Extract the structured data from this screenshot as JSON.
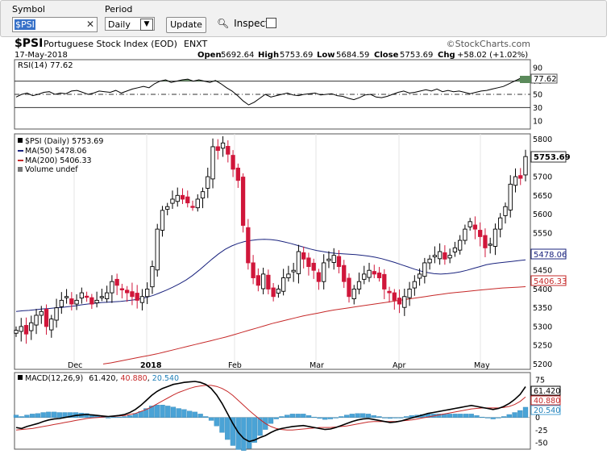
{
  "toolbar": {
    "symbol_label": "Symbol",
    "symbol_value": "$PSI",
    "period_label": "Period",
    "period_value": "Daily",
    "update_label": "Update",
    "inspect_label": "Inspect"
  },
  "header": {
    "ticker": "$PSI",
    "name": "Portuguese Stock Index (EOD)",
    "exchange": "ENXT",
    "watermark": "©StockCharts.com",
    "date": "17-May-2018",
    "open_label": "Open",
    "open": "5692.64",
    "high_label": "High",
    "high": "5753.69",
    "low_label": "Low",
    "low": "5684.59",
    "close_label": "Close",
    "close": "5753.69",
    "chg_label": "Chg",
    "chg": "+58.02 (+1.02%)"
  },
  "colors": {
    "up": "#000000",
    "down": "#d0163a",
    "ma50": "#1a237e",
    "ma200": "#c62828",
    "macd_hist": "#4aa3d6",
    "rsi_fill": "#5b8a5b"
  },
  "chart_data": [
    {
      "type": "line",
      "panel": "RSI",
      "title": "RSI(14) 77.62",
      "yticks": [
        90,
        70,
        50,
        30,
        10
      ],
      "ylim": [
        0,
        100
      ],
      "last_label": "77.62",
      "values": [
        46,
        50,
        52,
        48,
        50,
        53,
        54,
        50,
        52,
        51,
        55,
        56,
        53,
        50,
        52,
        55,
        54,
        53,
        56,
        52,
        55,
        58,
        60,
        62,
        60,
        66,
        70,
        72,
        68,
        70,
        72,
        73,
        70,
        72,
        70,
        68,
        71,
        66,
        60,
        55,
        48,
        40,
        34,
        38,
        44,
        50,
        46,
        48,
        50,
        52,
        49,
        48,
        50,
        51,
        52,
        49,
        50,
        51,
        48,
        47,
        44,
        42,
        45,
        49,
        50,
        46,
        45,
        47,
        50,
        53,
        55,
        52,
        53,
        55,
        57,
        55,
        58,
        54,
        56,
        54,
        55,
        53,
        51,
        53,
        55,
        56,
        58,
        60,
        62,
        66,
        70,
        74,
        77.62
      ]
    },
    {
      "type": "candlestick",
      "panel": "Price",
      "title": "$PSI (Daily) 5753.69",
      "legend": [
        "MA(50) 5478.06",
        "MA(200) 5406.33",
        "Volume undef"
      ],
      "xticks": [
        "Dec",
        "2018",
        "Feb",
        "Mar",
        "Apr",
        "May"
      ],
      "yticks": [
        5800,
        5750,
        5700,
        5650,
        5600,
        5550,
        5500,
        5450,
        5400,
        5350,
        5300,
        5250,
        5200
      ],
      "ylim": [
        5190,
        5810
      ],
      "last_price_label": "5753.69",
      "ma50_label": "5478.06",
      "ma200_label": "5406.33",
      "close": [
        5290,
        5300,
        5280,
        5310,
        5330,
        5340,
        5300,
        5320,
        5350,
        5370,
        5380,
        5360,
        5370,
        5390,
        5380,
        5360,
        5370,
        5380,
        5390,
        5420,
        5410,
        5400,
        5390,
        5380,
        5370,
        5380,
        5400,
        5460,
        5560,
        5610,
        5620,
        5640,
        5650,
        5640,
        5630,
        5620,
        5640,
        5660,
        5700,
        5780,
        5770,
        5790,
        5760,
        5720,
        5690,
        5570,
        5470,
        5430,
        5410,
        5440,
        5400,
        5380,
        5400,
        5430,
        5440,
        5450,
        5500,
        5480,
        5460,
        5450,
        5420,
        5470,
        5480,
        5490,
        5460,
        5420,
        5380,
        5400,
        5420,
        5440,
        5450,
        5440,
        5430,
        5400,
        5390,
        5370,
        5360,
        5380,
        5400,
        5420,
        5440,
        5470,
        5480,
        5490,
        5500,
        5480,
        5490,
        5510,
        5530,
        5560,
        5580,
        5560,
        5540,
        5510,
        5520,
        5560,
        5590,
        5620,
        5680,
        5700,
        5695.67,
        5753.69
      ],
      "ma50": [
        5340,
        5342,
        5343,
        5345,
        5347,
        5348,
        5350,
        5351,
        5353,
        5355,
        5358,
        5360,
        5362,
        5364,
        5365,
        5366,
        5367,
        5369,
        5371,
        5374,
        5378,
        5383,
        5390,
        5397,
        5405,
        5414,
        5424,
        5436,
        5450,
        5465,
        5480,
        5494,
        5506,
        5515,
        5522,
        5527,
        5530,
        5532,
        5533,
        5532,
        5530,
        5526,
        5522,
        5517,
        5512,
        5507,
        5503,
        5500,
        5497,
        5495,
        5494,
        5493,
        5492,
        5490,
        5488,
        5485,
        5481,
        5476,
        5471,
        5465,
        5459,
        5453,
        5448,
        5444,
        5441,
        5440,
        5441,
        5443,
        5446,
        5450,
        5455,
        5460,
        5465,
        5468,
        5470,
        5472,
        5474,
        5476,
        5478.06
      ],
      "ma200": [
        5200,
        5203,
        5207,
        5211,
        5215,
        5219,
        5223,
        5227,
        5232,
        5237,
        5242,
        5247,
        5252,
        5257,
        5262,
        5267,
        5272,
        5278,
        5284,
        5290,
        5296,
        5302,
        5308,
        5313,
        5318,
        5323,
        5328,
        5332,
        5336,
        5340,
        5344,
        5347,
        5350,
        5353,
        5356,
        5359,
        5362,
        5365,
        5368,
        5371,
        5374,
        5377,
        5380,
        5383,
        5386,
        5389,
        5391,
        5393,
        5395,
        5397,
        5399,
        5401,
        5403,
        5404,
        5405,
        5406.33
      ]
    },
    {
      "type": "bar",
      "panel": "MACD",
      "title": "MACD(12,26,9) 61.420, 40.880, 20.540",
      "title_prefix": "MACD(12,26,9)",
      "title_macd": "61.420",
      "title_signal": "40.880",
      "title_hist": "20.540",
      "yticks": [
        75,
        50,
        25,
        0,
        -25,
        -50
      ],
      "ylim": [
        -60,
        80
      ],
      "last_labels": [
        "61.420",
        "40.880",
        "20.540"
      ],
      "macd": [
        -20,
        -22,
        -18,
        -15,
        -12,
        -8,
        -5,
        -3,
        -2,
        0,
        2,
        4,
        5,
        6,
        5,
        4,
        3,
        2,
        3,
        4,
        6,
        10,
        16,
        24,
        34,
        44,
        52,
        58,
        62,
        66,
        68,
        70,
        71,
        72,
        70,
        66,
        58,
        45,
        28,
        8,
        -12,
        -30,
        -42,
        -48,
        -45,
        -40,
        -36,
        -30,
        -25,
        -22,
        -20,
        -18,
        -17,
        -16,
        -18,
        -20,
        -22,
        -24,
        -23,
        -20,
        -16,
        -12,
        -8,
        -5,
        -3,
        -2,
        -4,
        -6,
        -8,
        -10,
        -9,
        -7,
        -4,
        -1,
        2,
        5,
        8,
        10,
        12,
        14,
        16,
        18,
        20,
        22,
        24,
        22,
        20,
        18,
        16,
        18,
        22,
        28,
        36,
        46,
        61.42
      ],
      "signal": [
        -25,
        -24,
        -23,
        -22,
        -20,
        -18,
        -16,
        -14,
        -12,
        -10,
        -8,
        -6,
        -4,
        -2,
        -1,
        0,
        1,
        2,
        2,
        3,
        4,
        6,
        8,
        12,
        16,
        21,
        27,
        33,
        39,
        45,
        50,
        54,
        58,
        61,
        63,
        64,
        64,
        62,
        58,
        52,
        44,
        34,
        24,
        14,
        5,
        -4,
        -12,
        -18,
        -22,
        -24,
        -25,
        -25,
        -24,
        -23,
        -22,
        -21,
        -20,
        -20,
        -20,
        -19,
        -18,
        -17,
        -15,
        -13,
        -11,
        -9,
        -8,
        -8,
        -8,
        -8,
        -8,
        -7,
        -6,
        -5,
        -3,
        -1,
        1,
        3,
        5,
        7,
        9,
        11,
        13,
        15,
        17,
        18,
        19,
        19,
        19,
        19,
        20,
        22,
        26,
        32,
        40.88
      ],
      "histogram": [
        5,
        2,
        5,
        7,
        8,
        10,
        11,
        11,
        10,
        10,
        10,
        10,
        9,
        8,
        6,
        4,
        2,
        0,
        1,
        1,
        2,
        4,
        8,
        12,
        18,
        23,
        25,
        25,
        23,
        21,
        18,
        16,
        13,
        11,
        7,
        2,
        -6,
        -17,
        -30,
        -44,
        -56,
        -64,
        -66,
        -62,
        -50,
        -36,
        -24,
        -12,
        -3,
        2,
        5,
        7,
        7,
        7,
        4,
        1,
        -2,
        -4,
        -3,
        -1,
        2,
        5,
        7,
        8,
        8,
        7,
        4,
        2,
        0,
        -2,
        -1,
        0,
        2,
        4,
        5,
        6,
        7,
        7,
        7,
        7,
        7,
        7,
        7,
        7,
        7,
        4,
        1,
        -1,
        -3,
        -1,
        2,
        6,
        10,
        14,
        20.54
      ]
    }
  ]
}
